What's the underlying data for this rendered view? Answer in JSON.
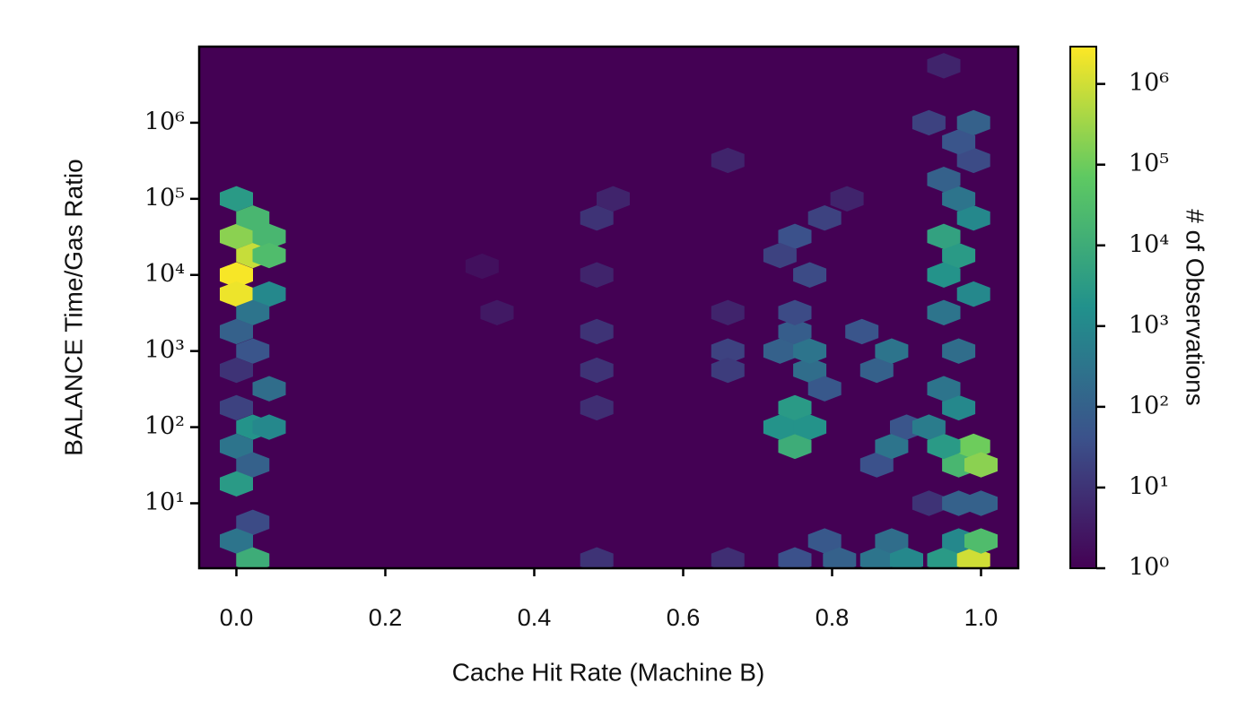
{
  "chart_data": {
    "type": "hexbin",
    "x_label": "Cache Hit Rate (Machine B)",
    "y_label": "BALANCE Time/Gas Ratio",
    "colorbar_label": "# of Observations",
    "xlim": [
      -0.05,
      1.05
    ],
    "ylim": [
      1.4,
      10000000
    ],
    "y_scale": "log",
    "clim": [
      1,
      2900000
    ],
    "color_scale": "log",
    "colormap": [
      "#440154",
      "#3b528b",
      "#21918c",
      "#5ec962",
      "#fde725"
    ],
    "xticks": [
      {
        "value": 0,
        "label": "0.0"
      },
      0.2,
      0.4,
      0.6,
      0.8,
      {
        "value": 1,
        "label": "1.0"
      }
    ],
    "yticks": [
      {
        "value": 10,
        "label": "10¹"
      },
      {
        "value": 100,
        "label": "10²"
      },
      {
        "value": 1000,
        "label": "10³"
      },
      {
        "value": 10000,
        "label": "10⁴"
      },
      {
        "value": 100000,
        "label": "10⁵"
      },
      {
        "value": 1000000,
        "label": "10⁶"
      }
    ],
    "cticks": [
      {
        "value": 1,
        "label": "10⁰"
      },
      {
        "value": 10,
        "label": "10¹"
      },
      {
        "value": 100,
        "label": "10²"
      },
      {
        "value": 1000,
        "label": "10³"
      },
      {
        "value": 10000,
        "label": "10⁴"
      },
      {
        "value": 100000,
        "label": "10⁵"
      },
      {
        "value": 1000000,
        "label": "10⁶"
      }
    ],
    "x": [
      0,
      0,
      0.022,
      0,
      0.044,
      0.022,
      0,
      0.044,
      0.044,
      0.022,
      0,
      0.022,
      0,
      0.044,
      0,
      0.022,
      0.044,
      0,
      0.022,
      0,
      0.022,
      0,
      0.022,
      0.35,
      0.33,
      0.484,
      0.506,
      0.484,
      0.484,
      0.484,
      0.484,
      0.484,
      0.66,
      0.66,
      0.66,
      0.66,
      0.66,
      0.75,
      0.73,
      0.75,
      0.77,
      0.73,
      0.75,
      0.77,
      0.79,
      0.75,
      0.77,
      0.75,
      0.79,
      0.75,
      0.79,
      0.81,
      0.73,
      0.82,
      0.77,
      0.86,
      0.88,
      0.9,
      0.86,
      0.88,
      0.86,
      0.88,
      0.84,
      0.9,
      0.95,
      0.97,
      0.99,
      1.0,
      0.97,
      0.99,
      1.0,
      0.95,
      0.93,
      0.97,
      0.95,
      0.97,
      0.95,
      0.99,
      0.95,
      0.97,
      0.95,
      0.99,
      0.97,
      0.95,
      0.99,
      0.97,
      0.93,
      0.99,
      0.95,
      0.93,
      0.97,
      1.0
    ],
    "y": [
      10000,
      5600,
      18000,
      32000,
      32000,
      56000,
      100000,
      18000,
      5600,
      3200,
      1800,
      1000,
      560,
      320,
      180,
      100,
      100,
      56,
      32,
      18,
      5.6,
      3.2,
      1.8,
      3200,
      13000,
      56000,
      100000,
      180,
      1800,
      560,
      1.8,
      10000,
      320000,
      1000,
      560,
      1.8,
      3200,
      56,
      100,
      180,
      100,
      1000,
      1800,
      560,
      320,
      3200,
      10000,
      32000,
      56000,
      1.8,
      3.2,
      1.8,
      18000,
      100000,
      1000,
      1.8,
      3.2,
      1.8,
      32,
      56,
      560,
      1000,
      1800,
      100,
      1.8,
      3.2,
      1.8,
      3.2,
      32,
      56,
      32,
      56,
      100,
      180,
      320,
      1000,
      3200,
      5600,
      10000,
      18000,
      32000,
      56000,
      100000,
      180000,
      320000,
      560000,
      1000000,
      1000000,
      5600000,
      10,
      10,
      10
    ],
    "counts": [
      2500000,
      2000000,
      800000,
      200000,
      20000,
      20000,
      3000,
      30000,
      1000,
      300,
      100,
      50,
      10,
      200,
      20,
      2000,
      1000,
      300,
      100,
      3000,
      30,
      300,
      10000,
      3,
      2,
      10,
      5,
      8,
      10,
      10,
      10,
      5,
      5,
      20,
      15,
      8,
      5,
      10000,
      2000,
      3000,
      2000,
      100,
      80,
      200,
      60,
      30,
      30,
      40,
      20,
      40,
      60,
      100,
      20,
      5,
      300,
      300,
      200,
      1000,
      40,
      300,
      100,
      300,
      50,
      50,
      3000,
      1000,
      1000000,
      30000,
      20000,
      100000,
      200000,
      3000,
      500,
      1000,
      300,
      200,
      300,
      1000,
      2000,
      3000,
      5000,
      1000,
      300,
      100,
      30,
      50,
      20,
      100,
      5,
      10,
      100,
      100
    ]
  }
}
